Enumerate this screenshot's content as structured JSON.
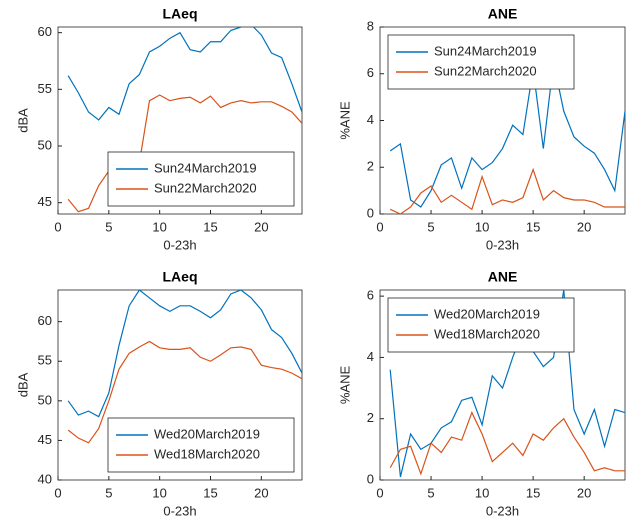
{
  "chart_data": [
    {
      "type": "line",
      "title": "LAeq",
      "xlabel": "0-23h",
      "ylabel": "dBA",
      "x": [
        1,
        2,
        3,
        4,
        5,
        6,
        7,
        8,
        9,
        10,
        11,
        12,
        13,
        14,
        15,
        16,
        17,
        18,
        19,
        20,
        21,
        22,
        23,
        24
      ],
      "xlim": [
        0,
        24
      ],
      "xticks": [
        0,
        5,
        10,
        15,
        20
      ],
      "ylim": [
        44,
        60.5
      ],
      "yticks": [
        45,
        50,
        55,
        60
      ],
      "legend": "lower right",
      "series": [
        {
          "name": "Sun24March2019",
          "color": "#0072BD",
          "values": [
            56.2,
            54.7,
            53,
            52.3,
            53.4,
            52.8,
            55.5,
            56.3,
            58.3,
            58.8,
            59.5,
            60,
            58.5,
            58.3,
            59.2,
            59.2,
            60.2,
            60.5,
            60.7,
            59.8,
            58.2,
            57.8,
            55.5,
            53
          ]
        },
        {
          "name": "Sun22March2020",
          "color": "#D95319",
          "values": [
            45.3,
            44.2,
            44.5,
            46.5,
            47.8,
            47.5,
            48,
            48.5,
            54,
            54.5,
            54,
            54.2,
            54.3,
            53.8,
            54.4,
            53.4,
            53.8,
            54,
            53.8,
            53.9,
            53.9,
            53.5,
            53,
            52
          ]
        }
      ]
    },
    {
      "type": "line",
      "title": "ANE",
      "xlabel": "0-23h",
      "ylabel": "%ANE",
      "x": [
        1,
        2,
        3,
        4,
        5,
        6,
        7,
        8,
        9,
        10,
        11,
        12,
        13,
        14,
        15,
        16,
        17,
        18,
        19,
        20,
        21,
        22,
        23,
        24
      ],
      "xlim": [
        0,
        24
      ],
      "xticks": [
        0,
        5,
        10,
        15,
        20
      ],
      "ylim": [
        0,
        8
      ],
      "yticks": [
        0,
        2,
        4,
        6,
        8
      ],
      "legend": "upper left",
      "series": [
        {
          "name": "Sun24March2019",
          "color": "#0072BD",
          "values": [
            2.7,
            3.0,
            0.6,
            0.3,
            1.0,
            2.1,
            2.4,
            1.1,
            2.4,
            1.9,
            2.2,
            2.8,
            3.8,
            3.4,
            6.2,
            2.8,
            6.5,
            4.4,
            3.3,
            2.9,
            2.6,
            1.9,
            1.0,
            4.4
          ]
        },
        {
          "name": "Sun22March2020",
          "color": "#D95319",
          "values": [
            0.2,
            0.0,
            0.3,
            0.9,
            1.2,
            0.5,
            0.8,
            0.5,
            0.2,
            1.6,
            0.4,
            0.6,
            0.5,
            0.7,
            1.9,
            0.6,
            1.0,
            0.7,
            0.6,
            0.6,
            0.5,
            0.3,
            0.3,
            0.3
          ]
        }
      ]
    },
    {
      "type": "line",
      "title": "LAeq",
      "xlabel": "0-23h",
      "ylabel": "dBA",
      "x": [
        1,
        2,
        3,
        4,
        5,
        6,
        7,
        8,
        9,
        10,
        11,
        12,
        13,
        14,
        15,
        16,
        17,
        18,
        19,
        20,
        21,
        22,
        23,
        24
      ],
      "xlim": [
        0,
        24
      ],
      "xticks": [
        0,
        5,
        10,
        15,
        20
      ],
      "ylim": [
        40,
        64
      ],
      "yticks": [
        40,
        45,
        50,
        55,
        60
      ],
      "legend": "lower right",
      "series": [
        {
          "name": "Wed20March2019",
          "color": "#0072BD",
          "values": [
            50,
            48.2,
            48.7,
            48,
            51,
            57,
            62,
            64,
            63,
            62,
            61.3,
            62,
            62,
            61.3,
            60.5,
            61.5,
            63.5,
            64,
            63,
            61.5,
            59,
            58,
            56,
            53.5
          ]
        },
        {
          "name": "Wed18March2020",
          "color": "#D95319",
          "values": [
            46.3,
            45.3,
            44.7,
            46.5,
            50,
            54,
            56,
            56.8,
            57.5,
            56.7,
            56.5,
            56.5,
            56.7,
            55.5,
            55,
            55.8,
            56.7,
            56.8,
            56.5,
            54.5,
            54.2,
            54,
            53.5,
            52.8
          ]
        }
      ]
    },
    {
      "type": "line",
      "title": "ANE",
      "xlabel": "0-23h",
      "ylabel": "%ANE",
      "x": [
        1,
        2,
        3,
        4,
        5,
        6,
        7,
        8,
        9,
        10,
        11,
        12,
        13,
        14,
        15,
        16,
        17,
        18,
        19,
        20,
        21,
        22,
        23,
        24
      ],
      "xlim": [
        0,
        24
      ],
      "xticks": [
        0,
        5,
        10,
        15,
        20
      ],
      "ylim": [
        0,
        6.2
      ],
      "yticks": [
        0,
        2,
        4,
        6
      ],
      "legend": "upper left",
      "series": [
        {
          "name": "Wed20March2019",
          "color": "#0072BD",
          "values": [
            3.6,
            0.1,
            1.5,
            1.0,
            1.2,
            1.7,
            1.9,
            2.6,
            2.7,
            1.8,
            3.4,
            3.0,
            4.0,
            4.9,
            4.2,
            3.7,
            4.0,
            6.2,
            2.3,
            1.5,
            2.3,
            1.1,
            2.3,
            2.2
          ]
        },
        {
          "name": "Wed18March2020",
          "color": "#D95319",
          "values": [
            0.4,
            1.0,
            1.1,
            0.2,
            1.2,
            0.9,
            1.4,
            1.3,
            2.2,
            1.5,
            0.6,
            0.9,
            1.2,
            0.8,
            1.5,
            1.3,
            1.7,
            2.0,
            1.4,
            0.9,
            0.3,
            0.4,
            0.3,
            0.3
          ]
        }
      ]
    }
  ]
}
